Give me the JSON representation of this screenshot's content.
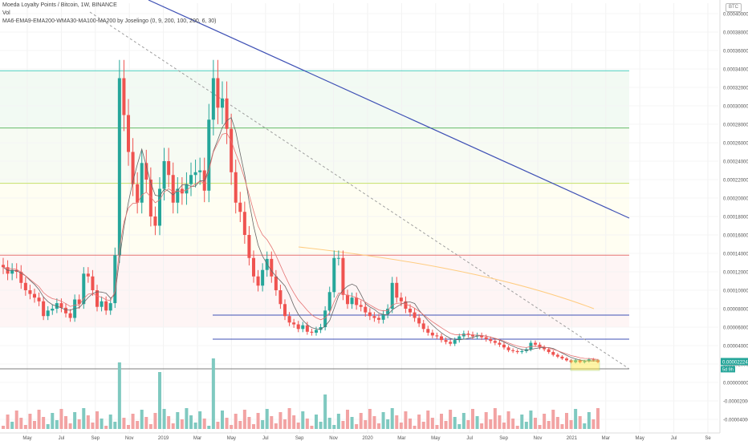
{
  "legend": {
    "title": "Moeda Loyalty Points / Bitcoin, 1W, BINANCE",
    "vol": "Vol",
    "ma": "MA6-EMA9-EMA200-WMA30-MA100-MA200 by Joselingo (0, 9, 200, 100, 200, 6, 30)"
  },
  "currency_badge": "BTC",
  "colors": {
    "up": "#26a69a",
    "down": "#ef5350",
    "vol_up": "#7fc9c0",
    "vol_down": "#f2a3a3",
    "blue_line": "#3f51b5",
    "dotted": "#9e9e9e"
  },
  "price_labels": {
    "current": "0.00002224",
    "countdown": "5d 9h"
  },
  "chart_data": {
    "type": "candlestick",
    "interval": "1W",
    "ylim": [
      -4e-05,
      0.0004
    ],
    "y_ticks": [
      "0.00040000",
      "0.00038000",
      "0.00036000",
      "0.00034000",
      "0.00032000",
      "0.00030000",
      "0.00028000",
      "0.00026000",
      "0.00024000",
      "0.00022000",
      "0.00020000",
      "0.00018000",
      "0.00016000",
      "0.00014000",
      "0.00012000",
      "0.00010000",
      "0.00008000",
      "0.00006000",
      "0.00004000",
      "0.00002000",
      "0.00000000",
      "-0.00002000",
      "-0.00004000"
    ],
    "x_ticks": [
      "May",
      "Jul",
      "Sep",
      "Nov",
      "2019",
      "Mar",
      "May",
      "Jul",
      "Sep",
      "Nov",
      "2020",
      "Mar",
      "May",
      "Jul",
      "Sep",
      "Nov",
      "2021",
      "Mar",
      "May",
      "Jul",
      "Se"
    ],
    "candles_note": "weekly OHLC estimated from chart",
    "closes": [
      0.000125,
      0.000118,
      0.000122,
      0.00012,
      0.000108,
      0.0001,
      9.6e-05,
      9.2e-05,
      8.8e-05,
      7.2e-05,
      7.8e-05,
      8e-05,
      8.6e-05,
      8.1e-05,
      7.5e-05,
      7e-05,
      9e-05,
      8.5e-05,
      0.000118,
      0.000115,
      0.0001,
      8.2e-05,
      8.8e-05,
      7.8e-05,
      8.6e-05,
      0.000138,
      0.00033,
      0.00029,
      0.00025,
      0.000215,
      0.000195,
      0.000238,
      0.00022,
      0.00018,
      0.00017,
      0.00021,
      0.00024,
      0.000225,
      0.000195,
      0.00021,
      0.000205,
      0.000215,
      0.000225,
      0.000228,
      0.00023,
      0.000208,
      0.000285,
      0.00033,
      0.000298,
      0.000308,
      0.000275,
      0.000228,
      0.000195,
      0.000185,
      0.00016,
      0.000135,
      0.000115,
      0.000105,
      0.000122,
      0.000134,
      0.000115,
      0.0001,
      8.5e-05,
      7.2e-05,
      6.5e-05,
      6.3e-05,
      5.8e-05,
      6.2e-05,
      5.5e-05,
      5.4e-05,
      5.7e-05,
      6e-05,
      7.8e-05,
      9.8e-05,
      0.000135,
      0.000135,
      9.5e-05,
      8.5e-05,
      9.2e-05,
      8.4e-05,
      8.2e-05,
      7.6e-05,
      7.2e-05,
      7e-05,
      6.8e-05,
      7.4e-05,
      8e-05,
      0.000108,
      9.2e-05,
      8.8e-05,
      8e-05,
      7.6e-05,
      7e-05,
      6.4e-05,
      5.8e-05,
      5.4e-05,
      5.1e-05,
      5e-05,
      4.6e-05,
      4.4e-05,
      4.2e-05,
      4.6e-05,
      5e-05,
      5.3e-05,
      5.2e-05,
      5e-05,
      5.1e-05,
      4.9e-05,
      4.7e-05,
      4.5e-05,
      4.3e-05,
      4.1e-05,
      3.8e-05,
      3.5e-05,
      3.4e-05,
      3.3e-05,
      3.4e-05,
      3.6e-05,
      4.3e-05,
      4.1e-05,
      3.8e-05,
      3.6e-05,
      3.3e-05,
      3e-05,
      2.8e-05,
      2.6e-05,
      2.4e-05,
      2.2e-05,
      2.4e-05,
      2.2e-05,
      2.3e-05,
      2.5e-05,
      2.4e-05,
      2.224e-05
    ],
    "indicators": [
      "MA6",
      "EMA9",
      "EMA200",
      "WMA30",
      "MA100",
      "MA200"
    ],
    "horizontal_levels": [
      0.000338,
      0.000276,
      0.000216,
      0.000138
    ],
    "support_lines": [
      7.3e-05,
      4.7e-05
    ]
  }
}
